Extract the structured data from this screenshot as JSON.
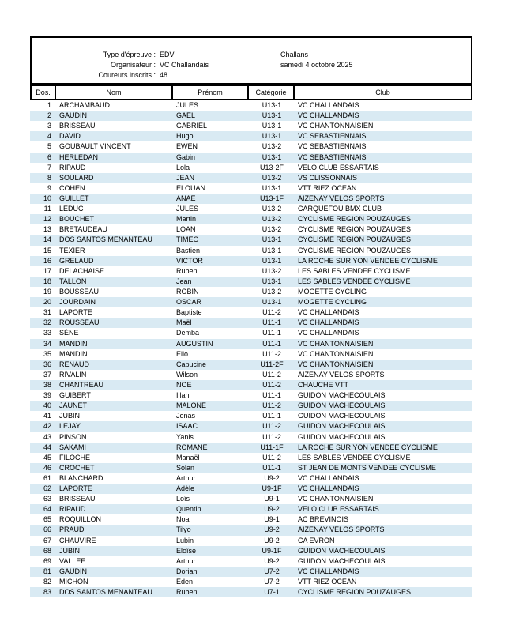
{
  "header": {
    "fields": [
      {
        "label": "Type d'épreuve :",
        "value": "EDV"
      },
      {
        "label": "Organisateur :",
        "value": "VC Challandais"
      },
      {
        "label": "Coureurs inscrits :",
        "value": "48"
      }
    ],
    "location": "Challans",
    "date": "samedi 4 octobre 2025"
  },
  "table": {
    "columns": [
      "Dos.",
      "Nom",
      "Prénom",
      "Catégorie",
      "Club"
    ],
    "rows": [
      [
        "1",
        "ARCHAMBAUD",
        "JULES",
        "U13-1",
        "VC CHALLANDAIS"
      ],
      [
        "2",
        "GAUDIN",
        "GAEL",
        "U13-1",
        "VC CHALLANDAIS"
      ],
      [
        "3",
        "BRISSEAU",
        "GABRIEL",
        "U13-1",
        "VC CHANTONNAISIEN"
      ],
      [
        "4",
        "DAVID",
        "Hugo",
        "U13-1",
        "VC SEBASTIENNAIS"
      ],
      [
        "5",
        "GOUBAULT VINCENT",
        "EWEN",
        "U13-2",
        "VC SEBASTIENNAIS"
      ],
      [
        "6",
        "HERLEDAN",
        "Gabin",
        "U13-1",
        "VC SEBASTIENNAIS"
      ],
      [
        "7",
        "RIPAUD",
        "Lola",
        "U13-2F",
        "VELO CLUB ESSARTAIS"
      ],
      [
        "8",
        "SOULARD",
        "JEAN",
        "U13-2",
        "VS CLISSONNAIS"
      ],
      [
        "9",
        "COHEN",
        "ELOUAN",
        "U13-1",
        "VTT RIEZ OCEAN"
      ],
      [
        "10",
        "GUILLET",
        "ANAE",
        "U13-1F",
        "AIZENAY VELOS SPORTS"
      ],
      [
        "11",
        "LEDUC",
        "JULES",
        "U13-2",
        "CARQUEFOU BMX CLUB"
      ],
      [
        "12",
        "BOUCHET",
        "Martin",
        "U13-2",
        "CYCLISME REGION POUZAUGES"
      ],
      [
        "13",
        "BRETAUDEAU",
        "LOAN",
        "U13-2",
        "CYCLISME REGION POUZAUGES"
      ],
      [
        "14",
        "DOS SANTOS MENANTEAU",
        "TIMEO",
        "U13-1",
        "CYCLISME REGION POUZAUGES"
      ],
      [
        "15",
        "TEXIER",
        "Bastien",
        "U13-1",
        "CYCLISME REGION POUZAUGES"
      ],
      [
        "16",
        "GRELAUD",
        "VICTOR",
        "U13-1",
        "LA ROCHE SUR YON VENDEE CYCLISME"
      ],
      [
        "17",
        "DELACHAISE",
        "Ruben",
        "U13-2",
        "LES SABLES VENDEE CYCLISME"
      ],
      [
        "18",
        "TALLON",
        "Jean",
        "U13-1",
        "LES SABLES VENDEE CYCLISME"
      ],
      [
        "19",
        "BOUSSEAU",
        "ROBIN",
        "U13-2",
        "MOGETTE CYCLING"
      ],
      [
        "20",
        "JOURDAIN",
        "OSCAR",
        "U13-1",
        "MOGETTE CYCLING"
      ],
      [
        "31",
        "LAPORTE",
        "Baptiste",
        "U11-2",
        "VC CHALLANDAIS"
      ],
      [
        "32",
        "ROUSSEAU",
        "Maël",
        "U11-1",
        "VC CHALLANDAIS"
      ],
      [
        "33",
        "SÈNE",
        "Demba",
        "U11-1",
        "VC CHALLANDAIS"
      ],
      [
        "34",
        "MANDIN",
        "AUGUSTIN",
        "U11-1",
        "VC CHANTONNAISIEN"
      ],
      [
        "35",
        "MANDIN",
        "Elio",
        "U11-2",
        "VC CHANTONNAISIEN"
      ],
      [
        "36",
        "RENAUD",
        "Capucine",
        "U11-2F",
        "VC CHANTONNAISIEN"
      ],
      [
        "37",
        "RIVALIN",
        "Wilson",
        "U11-2",
        "AIZENAY VELOS SPORTS"
      ],
      [
        "38",
        "CHANTREAU",
        "NOE",
        "U11-2",
        "CHAUCHE VTT"
      ],
      [
        "39",
        "GUIBERT",
        "Illan",
        "U11-1",
        "GUIDON MACHECOULAIS"
      ],
      [
        "40",
        "JAUNET",
        "MALONE",
        "U11-2",
        "GUIDON MACHECOULAIS"
      ],
      [
        "41",
        "JUBIN",
        "Jonas",
        "U11-1",
        "GUIDON MACHECOULAIS"
      ],
      [
        "42",
        "LEJAY",
        "ISAAC",
        "U11-2",
        "GUIDON MACHECOULAIS"
      ],
      [
        "43",
        "PINSON",
        "Yanis",
        "U11-2",
        "GUIDON MACHECOULAIS"
      ],
      [
        "44",
        "SAKAMI",
        "ROMANE",
        "U11-1F",
        "LA ROCHE SUR YON VENDEE CYCLISME"
      ],
      [
        "45",
        "FILOCHE",
        "Manaël",
        "U11-2",
        "LES SABLES VENDEE CYCLISME"
      ],
      [
        "46",
        "CROCHET",
        "Solan",
        "U11-1",
        "ST JEAN DE MONTS VENDEE CYCLISME"
      ],
      [
        "61",
        "BLANCHARD",
        "Arthur",
        "U9-2",
        "VC CHALLANDAIS"
      ],
      [
        "62",
        "LAPORTE",
        "Adèle",
        "U9-1F",
        "VC CHALLANDAIS"
      ],
      [
        "63",
        "BRISSEAU",
        "Loïs",
        "U9-1",
        "VC CHANTONNAISIEN"
      ],
      [
        "64",
        "RIPAUD",
        "Quentin",
        "U9-2",
        "VELO CLUB ESSARTAIS"
      ],
      [
        "65",
        "ROQUILLON",
        "Noa",
        "U9-1",
        "AC BREVINOIS"
      ],
      [
        "66",
        "PRAUD",
        "Tilyo",
        "U9-2",
        "AIZENAY VELOS SPORTS"
      ],
      [
        "67",
        "CHAUVIRÉ",
        "Lubin",
        "U9-2",
        "CA EVRON"
      ],
      [
        "68",
        "JUBIN",
        "Eloïse",
        "U9-1F",
        "GUIDON MACHECOULAIS"
      ],
      [
        "69",
        "VALLEE",
        "Arthur",
        "U9-2",
        "GUIDON MACHECOULAIS"
      ],
      [
        "81",
        "GAUDIN",
        "Dorian",
        "U7-2",
        "VC CHALLANDAIS"
      ],
      [
        "82",
        "MICHON",
        "Eden",
        "U7-2",
        "VTT RIEZ OCEAN"
      ],
      [
        "83",
        "DOS SANTOS MENANTEAU",
        "Ruben",
        "U7-1",
        "CYCLISME REGION POUZAUGES"
      ]
    ]
  },
  "colors": {
    "stripe": "#d9eaf3",
    "border": "#000000"
  }
}
